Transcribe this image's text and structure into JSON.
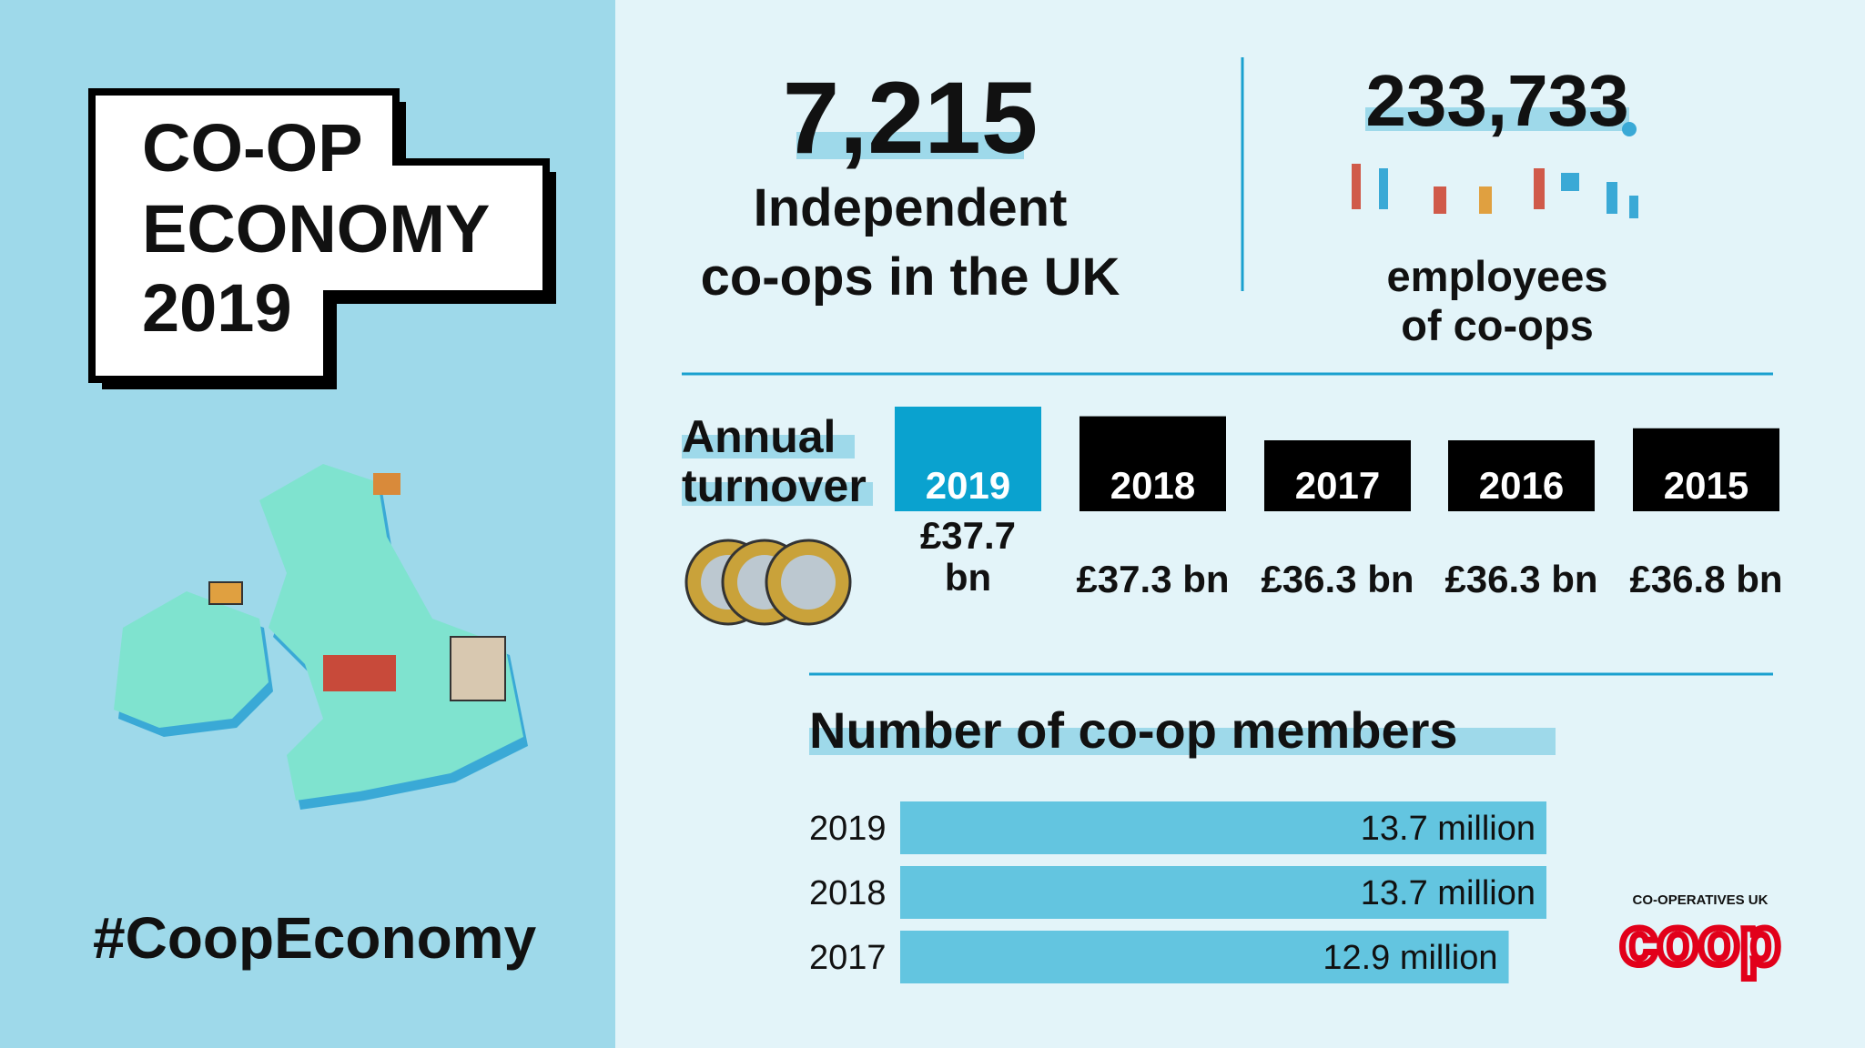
{
  "header": {
    "title_lines": [
      "CO-OP",
      "ECONOMY",
      "2019"
    ],
    "hashtag": "#CoopEconomy"
  },
  "stats": [
    {
      "value": "7,215",
      "text_lines": [
        "Independent",
        "co-ops in the UK"
      ]
    },
    {
      "value": "233,733",
      "text_lines": [
        "employees",
        "of co-ops"
      ]
    }
  ],
  "turnover": {
    "title_lines": [
      "Annual",
      "turnover"
    ],
    "years": [
      "2019",
      "2018",
      "2017",
      "2016",
      "2015"
    ],
    "values": [
      37.7,
      37.3,
      36.3,
      36.3,
      36.8
    ],
    "value_labels": [
      "£37.7 bn",
      "£37.3 bn",
      "£36.3 bn",
      "£36.3 bn",
      "£36.8 bn"
    ]
  },
  "members": {
    "title": "Number of co-op members",
    "years": [
      "2019",
      "2018",
      "2017"
    ],
    "values": [
      13.7,
      13.7,
      12.9
    ],
    "value_labels": [
      "13.7 million",
      "13.7 million",
      "12.9 million"
    ]
  },
  "logo": {
    "org": "CO-OPERATIVES UK",
    "mark": "coop"
  }
}
